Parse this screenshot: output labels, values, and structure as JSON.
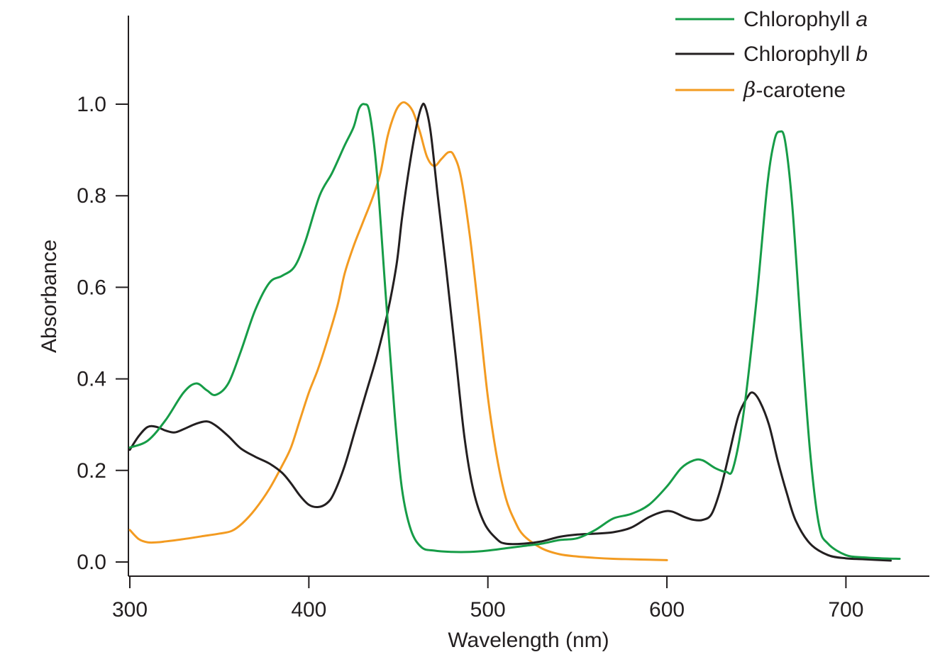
{
  "chart_data": {
    "type": "line",
    "xlabel": "Wavelength (nm)",
    "ylabel": "Absorbance",
    "xlim": [
      299,
      747
    ],
    "ylim": [
      0,
      1.12
    ],
    "x_ticks": [
      300,
      400,
      500,
      600,
      700
    ],
    "x_tick_labels": [
      "300",
      "400",
      "500",
      "600",
      "700"
    ],
    "y_ticks": [
      0.0,
      0.2,
      0.4,
      0.6,
      0.8,
      1.0
    ],
    "y_tick_labels": [
      "0.0",
      "0.2",
      "0.4",
      "0.6",
      "0.8",
      "1.0"
    ],
    "grid": false,
    "legend_position": "top-right",
    "series": [
      {
        "name": "Chlorophyll a",
        "legend_prefix": "Chlorophyll ",
        "legend_italic": "a",
        "color": "#169c47",
        "points": [
          [
            300,
            0.25
          ],
          [
            310,
            0.265
          ],
          [
            320,
            0.31
          ],
          [
            330,
            0.37
          ],
          [
            337,
            0.39
          ],
          [
            343,
            0.375
          ],
          [
            348,
            0.365
          ],
          [
            355,
            0.39
          ],
          [
            362,
            0.46
          ],
          [
            370,
            0.55
          ],
          [
            378,
            0.61
          ],
          [
            385,
            0.625
          ],
          [
            392,
            0.645
          ],
          [
            398,
            0.7
          ],
          [
            406,
            0.8
          ],
          [
            413,
            0.85
          ],
          [
            420,
            0.91
          ],
          [
            425,
            0.95
          ],
          [
            428,
            0.99
          ],
          [
            431,
            1.0
          ],
          [
            434,
            0.98
          ],
          [
            438,
            0.85
          ],
          [
            443,
            0.58
          ],
          [
            448,
            0.32
          ],
          [
            452,
            0.16
          ],
          [
            457,
            0.07
          ],
          [
            463,
            0.032
          ],
          [
            470,
            0.025
          ],
          [
            480,
            0.022
          ],
          [
            490,
            0.022
          ],
          [
            500,
            0.025
          ],
          [
            510,
            0.03
          ],
          [
            520,
            0.035
          ],
          [
            530,
            0.04
          ],
          [
            540,
            0.048
          ],
          [
            550,
            0.052
          ],
          [
            560,
            0.07
          ],
          [
            570,
            0.095
          ],
          [
            580,
            0.105
          ],
          [
            590,
            0.125
          ],
          [
            600,
            0.165
          ],
          [
            608,
            0.205
          ],
          [
            615,
            0.222
          ],
          [
            620,
            0.222
          ],
          [
            627,
            0.205
          ],
          [
            633,
            0.197
          ],
          [
            637,
            0.205
          ],
          [
            643,
            0.33
          ],
          [
            650,
            0.57
          ],
          [
            656,
            0.82
          ],
          [
            660,
            0.92
          ],
          [
            663,
            0.94
          ],
          [
            666,
            0.92
          ],
          [
            670,
            0.78
          ],
          [
            675,
            0.5
          ],
          [
            680,
            0.24
          ],
          [
            685,
            0.08
          ],
          [
            690,
            0.04
          ],
          [
            700,
            0.015
          ],
          [
            710,
            0.01
          ],
          [
            720,
            0.008
          ],
          [
            730,
            0.007
          ]
        ]
      },
      {
        "name": "Chlorophyll b",
        "legend_prefix": "Chlorophyll ",
        "legend_italic": "b",
        "color": "#231f20",
        "points": [
          [
            300,
            0.245
          ],
          [
            305,
            0.275
          ],
          [
            310,
            0.295
          ],
          [
            315,
            0.295
          ],
          [
            320,
            0.287
          ],
          [
            325,
            0.283
          ],
          [
            330,
            0.29
          ],
          [
            337,
            0.302
          ],
          [
            343,
            0.307
          ],
          [
            348,
            0.298
          ],
          [
            355,
            0.275
          ],
          [
            362,
            0.248
          ],
          [
            370,
            0.23
          ],
          [
            378,
            0.215
          ],
          [
            385,
            0.195
          ],
          [
            390,
            0.172
          ],
          [
            395,
            0.145
          ],
          [
            400,
            0.125
          ],
          [
            405,
            0.12
          ],
          [
            410,
            0.128
          ],
          [
            414,
            0.15
          ],
          [
            420,
            0.21
          ],
          [
            426,
            0.29
          ],
          [
            432,
            0.37
          ],
          [
            438,
            0.45
          ],
          [
            444,
            0.545
          ],
          [
            449,
            0.65
          ],
          [
            452,
            0.75
          ],
          [
            456,
            0.86
          ],
          [
            460,
            0.95
          ],
          [
            463,
            0.995
          ],
          [
            465,
            0.995
          ],
          [
            468,
            0.94
          ],
          [
            472,
            0.8
          ],
          [
            477,
            0.63
          ],
          [
            482,
            0.45
          ],
          [
            487,
            0.27
          ],
          [
            492,
            0.155
          ],
          [
            498,
            0.085
          ],
          [
            505,
            0.05
          ],
          [
            510,
            0.04
          ],
          [
            520,
            0.04
          ],
          [
            530,
            0.045
          ],
          [
            540,
            0.055
          ],
          [
            550,
            0.06
          ],
          [
            560,
            0.062
          ],
          [
            570,
            0.065
          ],
          [
            580,
            0.075
          ],
          [
            590,
            0.098
          ],
          [
            598,
            0.11
          ],
          [
            603,
            0.11
          ],
          [
            610,
            0.098
          ],
          [
            615,
            0.092
          ],
          [
            620,
            0.092
          ],
          [
            625,
            0.105
          ],
          [
            630,
            0.16
          ],
          [
            635,
            0.24
          ],
          [
            640,
            0.32
          ],
          [
            645,
            0.36
          ],
          [
            648,
            0.37
          ],
          [
            652,
            0.35
          ],
          [
            657,
            0.3
          ],
          [
            662,
            0.22
          ],
          [
            667,
            0.15
          ],
          [
            672,
            0.09
          ],
          [
            680,
            0.04
          ],
          [
            690,
            0.015
          ],
          [
            700,
            0.008
          ],
          [
            710,
            0.006
          ],
          [
            725,
            0.003
          ]
        ]
      },
      {
        "name": "β-carotene",
        "legend_greek": "β",
        "legend_rest": "-carotene",
        "color": "#f39b21",
        "points": [
          [
            300,
            0.07
          ],
          [
            305,
            0.05
          ],
          [
            310,
            0.043
          ],
          [
            315,
            0.043
          ],
          [
            320,
            0.045
          ],
          [
            330,
            0.05
          ],
          [
            340,
            0.056
          ],
          [
            350,
            0.062
          ],
          [
            357,
            0.068
          ],
          [
            363,
            0.085
          ],
          [
            370,
            0.115
          ],
          [
            378,
            0.16
          ],
          [
            385,
            0.21
          ],
          [
            390,
            0.25
          ],
          [
            395,
            0.31
          ],
          [
            400,
            0.37
          ],
          [
            405,
            0.42
          ],
          [
            410,
            0.48
          ],
          [
            416,
            0.56
          ],
          [
            420,
            0.63
          ],
          [
            425,
            0.69
          ],
          [
            430,
            0.74
          ],
          [
            436,
            0.8
          ],
          [
            440,
            0.85
          ],
          [
            444,
            0.93
          ],
          [
            448,
            0.98
          ],
          [
            451,
            1.0
          ],
          [
            454,
            1.003
          ],
          [
            458,
            0.985
          ],
          [
            462,
            0.94
          ],
          [
            466,
            0.885
          ],
          [
            470,
            0.865
          ],
          [
            474,
            0.88
          ],
          [
            478,
            0.895
          ],
          [
            481,
            0.888
          ],
          [
            485,
            0.84
          ],
          [
            490,
            0.71
          ],
          [
            495,
            0.54
          ],
          [
            500,
            0.36
          ],
          [
            505,
            0.23
          ],
          [
            510,
            0.14
          ],
          [
            515,
            0.09
          ],
          [
            520,
            0.058
          ],
          [
            530,
            0.03
          ],
          [
            540,
            0.017
          ],
          [
            550,
            0.012
          ],
          [
            560,
            0.009
          ],
          [
            570,
            0.007
          ],
          [
            580,
            0.006
          ],
          [
            590,
            0.005
          ],
          [
            600,
            0.004
          ]
        ]
      }
    ]
  }
}
